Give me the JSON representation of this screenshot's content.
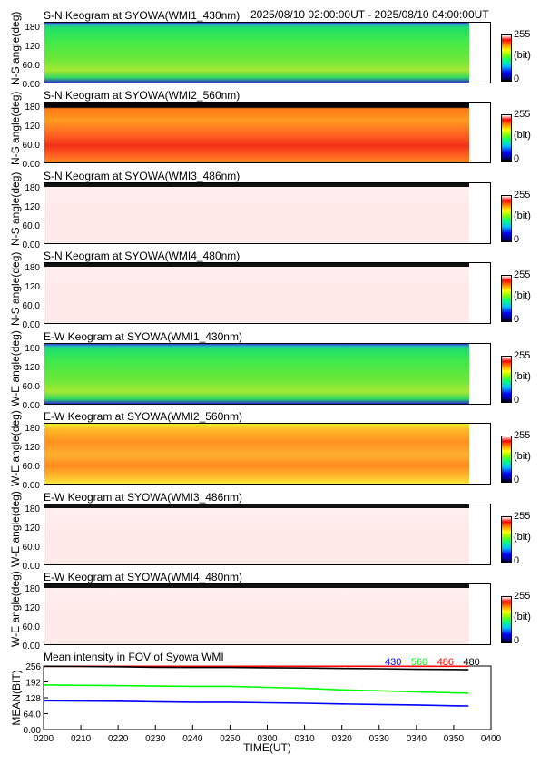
{
  "header": {
    "range": "2025/08/10 02:00:00UT - 2025/08/10 04:00:00UT"
  },
  "colorbar": {
    "max": "255",
    "unit": "(bit)",
    "min": "0"
  },
  "keograms": [
    {
      "title": "S-N Keogram at SYOWA(WMI1_430nm)",
      "ylabel": "N-S angle(deg)",
      "yticks": [
        "180",
        "120",
        "60.0",
        "0.00"
      ],
      "colormap_level": "green"
    },
    {
      "title": "S-N Keogram at SYOWA(WMI2_560nm)",
      "ylabel": "N-S angle(deg)",
      "yticks": [
        "180",
        "120",
        "60.0",
        "0.00"
      ],
      "colormap_level": "orange-red"
    },
    {
      "title": "S-N Keogram at SYOWA(WMI3_486nm)",
      "ylabel": "N-S angle(deg)",
      "yticks": [
        "180",
        "120",
        "60.0",
        "0.00"
      ],
      "colormap_level": "saturated-white"
    },
    {
      "title": "S-N Keogram at SYOWA(WMI4_480nm)",
      "ylabel": "N-S angle(deg)",
      "yticks": [
        "180",
        "120",
        "60.0",
        "0.00"
      ],
      "colormap_level": "saturated-white"
    },
    {
      "title": "E-W Keogram at SYOWA(WMI1_430nm)",
      "ylabel": "W-E angle(deg)",
      "yticks": [
        "180",
        "120",
        "60.0",
        "0.00"
      ],
      "colormap_level": "green"
    },
    {
      "title": "E-W Keogram at SYOWA(WMI2_560nm)",
      "ylabel": "W-E angle(deg)",
      "yticks": [
        "180",
        "120",
        "60.0",
        "0.00"
      ],
      "colormap_level": "orange"
    },
    {
      "title": "E-W Keogram at SYOWA(WMI3_486nm)",
      "ylabel": "W-E angle(deg)",
      "yticks": [
        "180",
        "120",
        "60.0",
        "0.00"
      ],
      "colormap_level": "saturated-white"
    },
    {
      "title": "E-W Keogram at SYOWA(WMI4_480nm)",
      "ylabel": "W-E angle(deg)",
      "yticks": [
        "180",
        "120",
        "60.0",
        "0.00"
      ],
      "colormap_level": "saturated-white"
    }
  ],
  "chart_data": {
    "type": "line",
    "title": "Mean intensity in FOV of Syowa WMI",
    "xlabel": "TIME(UT)",
    "ylabel": "MEAN(BIT)",
    "xlim": [
      0,
      120
    ],
    "ylim": [
      0,
      256
    ],
    "x_tick_labels": [
      "0200",
      "0210",
      "0220",
      "0230",
      "0240",
      "0250",
      "0300",
      "0310",
      "0320",
      "0330",
      "0340",
      "0350",
      "0400"
    ],
    "y_tick_labels": [
      "256",
      "192",
      "128",
      "64.0",
      "0.00"
    ],
    "x": [
      0,
      10,
      20,
      30,
      40,
      50,
      60,
      70,
      80,
      90,
      100,
      110,
      114
    ],
    "series": [
      {
        "name": "430",
        "color": "#0000ff",
        "values": [
          116,
          115,
          114,
          112,
          110,
          110,
          108,
          106,
          103,
          101,
          99,
          96,
          95
        ]
      },
      {
        "name": "560",
        "color": "#00ff00",
        "values": [
          180,
          178,
          177,
          175,
          174,
          174,
          170,
          166,
          160,
          156,
          152,
          148,
          147
        ]
      },
      {
        "name": "486",
        "color": "#ff0000",
        "values": [
          255,
          255,
          255,
          255,
          255,
          255,
          255,
          255,
          255,
          255,
          255,
          255,
          255
        ]
      },
      {
        "name": "480",
        "color": "#000000",
        "values": [
          255,
          254,
          253,
          251,
          250,
          250,
          249,
          248,
          246,
          245,
          243,
          242,
          241
        ]
      }
    ]
  }
}
